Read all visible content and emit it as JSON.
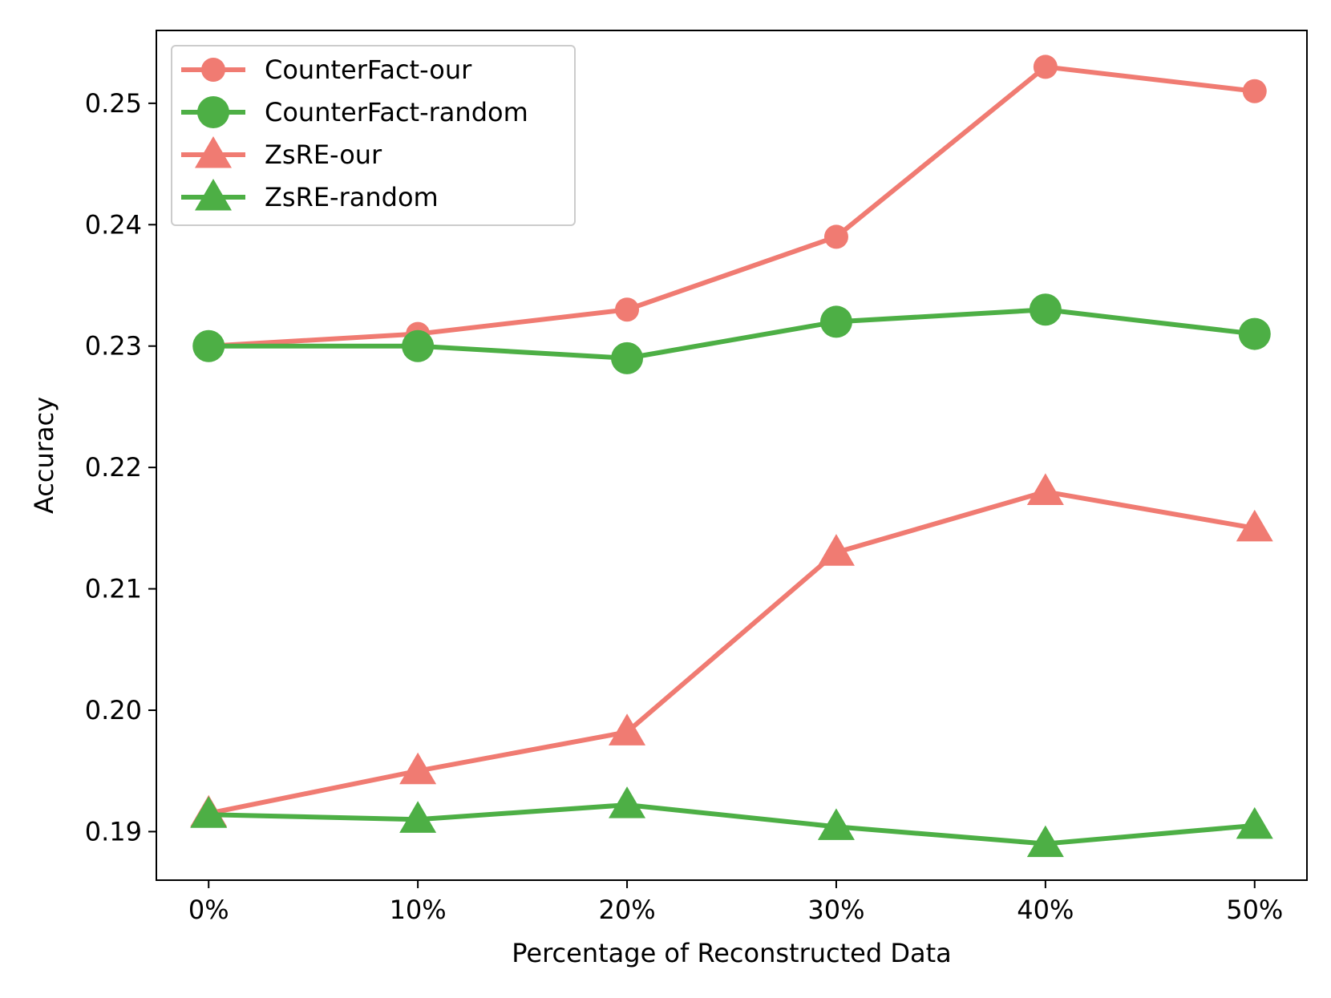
{
  "chart_data": {
    "type": "line",
    "title": "",
    "xlabel": "Percentage of Reconstructed Data",
    "ylabel": "Accuracy",
    "categories": [
      "0%",
      "10%",
      "20%",
      "30%",
      "40%",
      "50%"
    ],
    "x": [
      0,
      10,
      20,
      30,
      40,
      50
    ],
    "xlim": [
      -2.5,
      52.5
    ],
    "ylim": [
      0.186,
      0.256
    ],
    "yticks": [
      0.19,
      0.2,
      0.21,
      0.22,
      0.23,
      0.24,
      0.25
    ],
    "ytick_labels": [
      "0.19",
      "0.20",
      "0.21",
      "0.22",
      "0.23",
      "0.24",
      "0.25"
    ],
    "grid": false,
    "legend_position": "top-left",
    "series": [
      {
        "name": "CounterFact-our",
        "color": "#f07b72",
        "marker": "circle-small",
        "values": [
          0.23,
          0.231,
          0.233,
          0.239,
          0.253,
          0.251
        ]
      },
      {
        "name": "CounterFact-random",
        "color": "#4daf45",
        "marker": "circle-large",
        "values": [
          0.23,
          0.23,
          0.229,
          0.232,
          0.233,
          0.231
        ]
      },
      {
        "name": "ZsRE-our",
        "color": "#f07b72",
        "marker": "triangle",
        "values": [
          0.1915,
          0.195,
          0.1982,
          0.213,
          0.218,
          0.215
        ]
      },
      {
        "name": "ZsRE-random",
        "color": "#4daf45",
        "marker": "triangle",
        "values": [
          0.1914,
          0.191,
          0.1922,
          0.1904,
          0.189,
          0.1905
        ]
      }
    ]
  }
}
